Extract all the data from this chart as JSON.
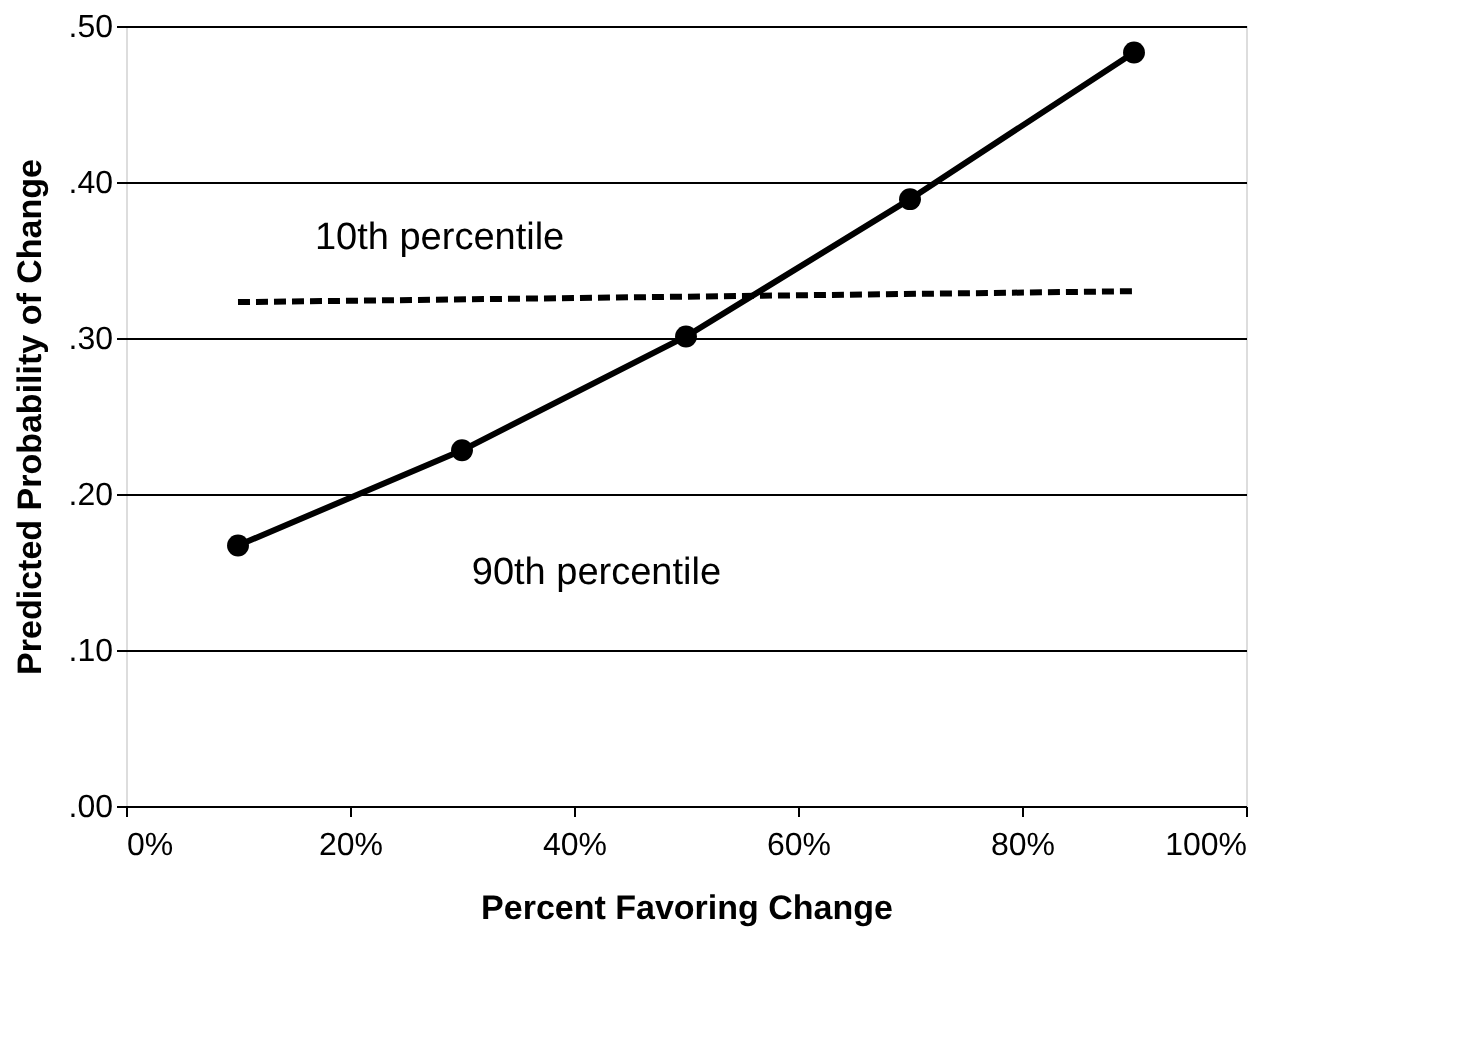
{
  "chart_data": {
    "type": "line",
    "xlabel": "Percent Favoring Change",
    "ylabel": "Predicted Probability of Change",
    "xlim": [
      0,
      100
    ],
    "ylim": [
      0,
      0.5
    ],
    "xticks": [
      {
        "value": 0,
        "label": "0%"
      },
      {
        "value": 20,
        "label": "20%"
      },
      {
        "value": 40,
        "label": "40%"
      },
      {
        "value": 60,
        "label": "60%"
      },
      {
        "value": 80,
        "label": "80%"
      },
      {
        "value": 100,
        "label": "100%"
      }
    ],
    "yticks": [
      {
        "value": 0,
        "label": ".00"
      },
      {
        "value": 0.1,
        "label": ".10"
      },
      {
        "value": 0.2,
        "label": ".20"
      },
      {
        "value": 0.3,
        "label": ".30"
      },
      {
        "value": 0.4,
        "label": ".40"
      },
      {
        "value": 0.5,
        "label": ".50"
      }
    ],
    "grid": "y",
    "series": [
      {
        "color": "#000000",
        "x": [
          10,
          30,
          50,
          70,
          90
        ],
        "values": [
          0.167,
          0.228,
          0.301,
          0.389,
          0.483
        ],
        "marker": "circle",
        "line_style": "solid"
      },
      {
        "color": "#000000",
        "x": [
          10,
          90
        ],
        "values": [
          0.323,
          0.33
        ],
        "marker": "none",
        "line_style": "dashed"
      }
    ],
    "annotations": [
      "10th percentile",
      "90th percentile"
    ]
  }
}
